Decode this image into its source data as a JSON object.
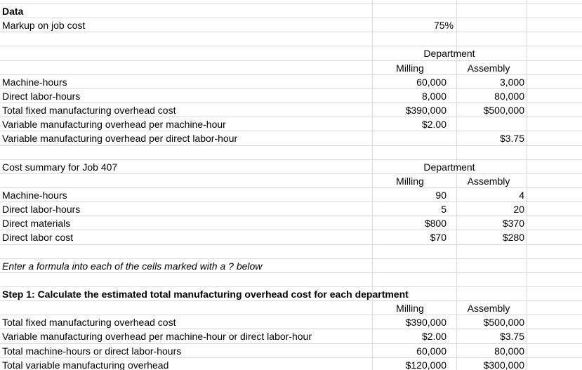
{
  "title": "Data",
  "markup": {
    "label": "Markup on job cost",
    "value": "75%"
  },
  "department_rates": {
    "heading": "Department",
    "columns": [
      "Milling",
      "Assembly"
    ],
    "rows": [
      {
        "label": "Machine-hours",
        "values": [
          "60,000",
          "3,000"
        ]
      },
      {
        "label": "Direct labor-hours",
        "values": [
          "8,000",
          "80,000"
        ]
      },
      {
        "label": "Total fixed manufacturing overhead cost",
        "values": [
          "$390,000",
          "$500,000"
        ]
      },
      {
        "label": "Variable manufacturing overhead per machine-hour",
        "values": [
          "$2.00",
          null
        ]
      },
      {
        "label": "Variable manufacturing overhead per direct labor-hour",
        "values": [
          null,
          "$3.75"
        ]
      }
    ]
  },
  "job_cost_summary": {
    "label": "Cost summary for Job 407",
    "heading": "Department",
    "columns": [
      "Milling",
      "Assembly"
    ],
    "rows": [
      {
        "label": "Machine-hours",
        "values": [
          "90",
          "4"
        ]
      },
      {
        "label": "Direct labor-hours",
        "values": [
          "5",
          "20"
        ]
      },
      {
        "label": "Direct materials",
        "values": [
          "$800",
          "$370"
        ]
      },
      {
        "label": "Direct labor cost",
        "values": [
          "$70",
          "$280"
        ]
      }
    ]
  },
  "instruction": "Enter a formula into each of the cells marked with a ? below",
  "step1": {
    "title": "Step 1: Calculate the estimated total manufacturing overhead cost for each department",
    "columns": [
      "Milling",
      "Assembly"
    ],
    "rows": [
      {
        "label": "Total fixed manufacturing overhead cost",
        "values": [
          "$390,000",
          "$500,000"
        ]
      },
      {
        "label": "Variable manufacturing overhead per machine-hour or direct labor-hour",
        "values": [
          "$2.00",
          "$3.75"
        ]
      },
      {
        "label": "Total machine-hours or direct labor-hours",
        "values": [
          "60,000",
          "80,000"
        ]
      },
      {
        "label": "Total variable manufacturing overhead",
        "values": [
          "$120,000",
          "$300,000"
        ]
      }
    ]
  }
}
